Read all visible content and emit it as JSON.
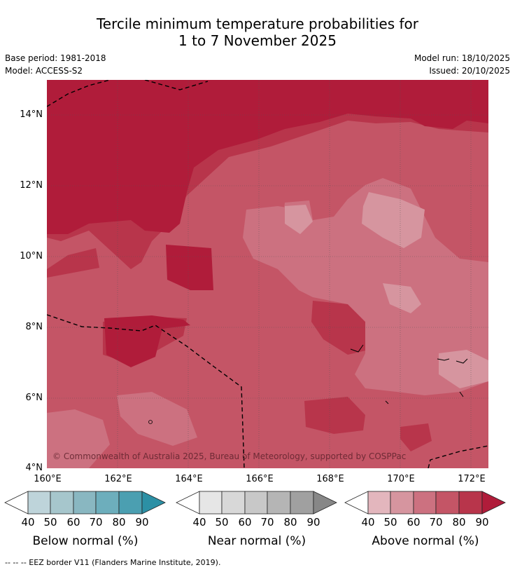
{
  "title": {
    "line1": "Tercile minimum temperature probabilities for",
    "line2": "1 to 7 November 2025"
  },
  "meta": {
    "base_period": "Base period: 1981-2018",
    "model": "Model: ACCESS-S2",
    "model_run": "Model run: 18/10/2025",
    "issued": "Issued: 20/10/2025"
  },
  "map": {
    "copyright": "© Commonwealth of Australia 2025, Bureau of Meteorology, supported by COSPPac",
    "lat_ticks": [
      "14°N",
      "12°N",
      "10°N",
      "8°N",
      "6°N",
      "4°N"
    ],
    "lon_ticks": [
      "160°E",
      "162°E",
      "164°E",
      "166°E",
      "168°E",
      "170°E",
      "172°E"
    ],
    "extent": {
      "lon_min": 160,
      "lon_max": 172.5,
      "lat_min": 4,
      "lat_max": 15
    }
  },
  "colorbars": {
    "below": {
      "title": "Below normal (%)",
      "labels": [
        "40",
        "50",
        "60",
        "70",
        "80",
        "90"
      ],
      "colors": [
        "#ffffff",
        "#bed4da",
        "#a6c6cc",
        "#89b7c1",
        "#6daebc",
        "#4b9fb1",
        "#2c90a5"
      ]
    },
    "near": {
      "title": "Near normal (%)",
      "labels": [
        "40",
        "50",
        "60",
        "70",
        "80",
        "90"
      ],
      "colors": [
        "#ffffff",
        "#e6e6e6",
        "#d8d8d8",
        "#c8c8c8",
        "#b5b5b5",
        "#a0a0a0",
        "#878787"
      ]
    },
    "above": {
      "title": "Above normal (%)",
      "labels": [
        "40",
        "50",
        "60",
        "70",
        "80",
        "90"
      ],
      "colors": [
        "#ffffff",
        "#e3b6bd",
        "#d6959f",
        "#cc7180",
        "#c45566",
        "#b8354b",
        "#b01c3a"
      ]
    }
  },
  "footer": "--  --  -- EEZ border V11 (Flanders Marine Institute, 2019)."
}
